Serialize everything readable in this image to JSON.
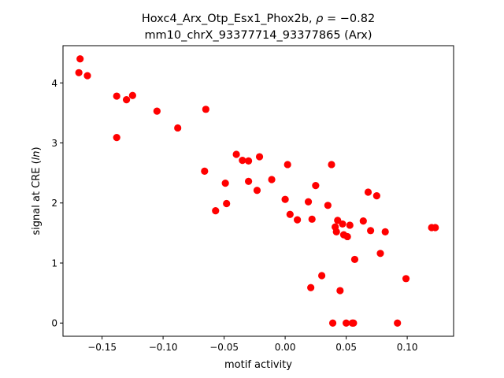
{
  "chart_data": {
    "type": "scatter",
    "title_line1": "Hoxc4_Arx_Otp_Esx1_Phox2b, ",
    "title_rho_symbol": "ρ",
    "title_rho_value": " = −0.82",
    "title_line2": "mm10_chrX_93377714_93377865 (Arx)",
    "xlabel": "motif activity",
    "ylabel_prefix": "signal at CRE (",
    "ylabel_italic": "ln",
    "ylabel_suffix": ")",
    "xlim": [
      -0.182,
      0.138
    ],
    "ylim": [
      -0.22,
      4.62
    ],
    "x_ticks": [
      -0.15,
      -0.1,
      -0.05,
      0.0,
      0.05,
      0.1
    ],
    "x_tick_labels": [
      "−0.15",
      "−0.10",
      "−0.05",
      "0.00",
      "0.05",
      "0.10"
    ],
    "y_ticks": [
      0,
      1,
      2,
      3,
      4
    ],
    "y_tick_labels": [
      "0",
      "1",
      "2",
      "3",
      "4"
    ],
    "grid": false,
    "marker_color": "#ff0000",
    "points": [
      {
        "x": -0.168,
        "y": 4.4
      },
      {
        "x": -0.169,
        "y": 4.17
      },
      {
        "x": -0.162,
        "y": 4.12
      },
      {
        "x": -0.138,
        "y": 3.78
      },
      {
        "x": -0.13,
        "y": 3.72
      },
      {
        "x": -0.125,
        "y": 3.79
      },
      {
        "x": -0.138,
        "y": 3.09
      },
      {
        "x": -0.105,
        "y": 3.53
      },
      {
        "x": -0.088,
        "y": 3.25
      },
      {
        "x": -0.065,
        "y": 3.56
      },
      {
        "x": -0.066,
        "y": 2.53
      },
      {
        "x": -0.049,
        "y": 2.33
      },
      {
        "x": -0.048,
        "y": 1.99
      },
      {
        "x": -0.057,
        "y": 1.87
      },
      {
        "x": -0.04,
        "y": 2.81
      },
      {
        "x": -0.035,
        "y": 2.71
      },
      {
        "x": -0.03,
        "y": 2.7
      },
      {
        "x": -0.021,
        "y": 2.77
      },
      {
        "x": -0.03,
        "y": 2.36
      },
      {
        "x": -0.023,
        "y": 2.21
      },
      {
        "x": -0.011,
        "y": 2.39
      },
      {
        "x": 0.002,
        "y": 2.64
      },
      {
        "x": 0.0,
        "y": 2.06
      },
      {
        "x": 0.004,
        "y": 1.81
      },
      {
        "x": 0.01,
        "y": 1.72
      },
      {
        "x": 0.019,
        "y": 2.02
      },
      {
        "x": 0.025,
        "y": 2.29
      },
      {
        "x": 0.022,
        "y": 1.73
      },
      {
        "x": 0.035,
        "y": 1.96
      },
      {
        "x": 0.038,
        "y": 2.64
      },
      {
        "x": 0.043,
        "y": 1.71
      },
      {
        "x": 0.041,
        "y": 1.6
      },
      {
        "x": 0.042,
        "y": 1.52
      },
      {
        "x": 0.047,
        "y": 1.65
      },
      {
        "x": 0.048,
        "y": 1.47
      },
      {
        "x": 0.051,
        "y": 1.44
      },
      {
        "x": 0.053,
        "y": 1.63
      },
      {
        "x": 0.064,
        "y": 1.7
      },
      {
        "x": 0.068,
        "y": 2.18
      },
      {
        "x": 0.075,
        "y": 2.12
      },
      {
        "x": 0.07,
        "y": 1.54
      },
      {
        "x": 0.082,
        "y": 1.52
      },
      {
        "x": 0.078,
        "y": 1.16
      },
      {
        "x": 0.057,
        "y": 1.06
      },
      {
        "x": 0.03,
        "y": 0.79
      },
      {
        "x": 0.021,
        "y": 0.59
      },
      {
        "x": 0.045,
        "y": 0.54
      },
      {
        "x": 0.099,
        "y": 0.74
      },
      {
        "x": 0.12,
        "y": 1.59
      },
      {
        "x": 0.123,
        "y": 1.59
      },
      {
        "x": 0.039,
        "y": 0.0
      },
      {
        "x": 0.05,
        "y": 0.0
      },
      {
        "x": 0.055,
        "y": 0.0
      },
      {
        "x": 0.056,
        "y": 0.0
      },
      {
        "x": 0.092,
        "y": 0.0
      }
    ]
  }
}
